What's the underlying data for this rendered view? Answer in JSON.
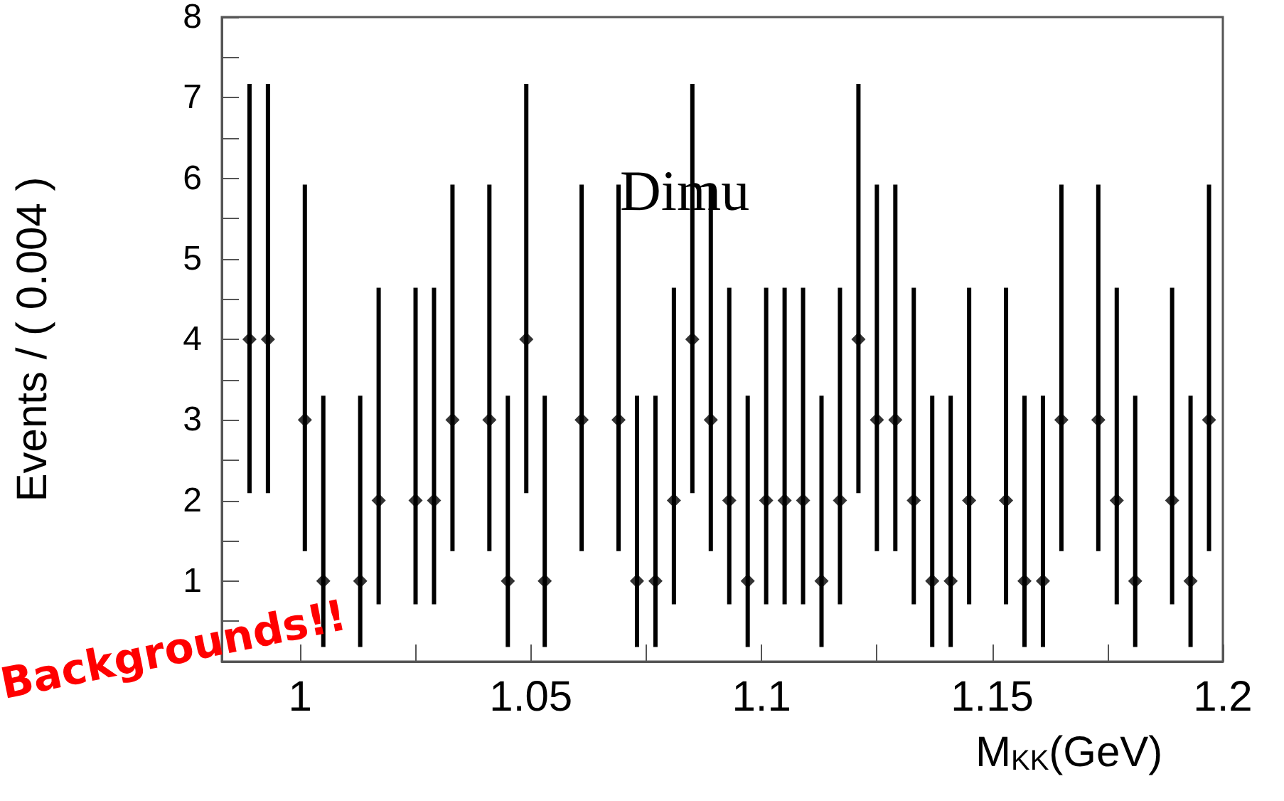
{
  "chart_data": {
    "type": "scatter",
    "xlabel": "M$_{KK}$(GeV)",
    "ylabel": "Events / ( 0.004 )",
    "annotations": [
      "Dimu",
      "Backgrounds!!"
    ],
    "x": [
      0.989,
      0.993,
      1.001,
      1.005,
      1.013,
      1.017,
      1.025,
      1.029,
      1.033,
      1.041,
      1.045,
      1.049,
      1.053,
      1.061,
      1.069,
      1.073,
      1.077,
      1.081,
      1.085,
      1.089,
      1.093,
      1.097,
      1.101,
      1.105,
      1.109,
      1.113,
      1.117,
      1.121,
      1.125,
      1.129,
      1.133,
      1.137,
      1.141,
      1.145,
      1.153,
      1.157,
      1.161,
      1.165,
      1.173,
      1.177,
      1.181,
      1.189,
      1.193,
      1.197
    ],
    "series": [
      {
        "color": "#000000",
        "values": [
          4,
          4,
          3,
          1,
          1,
          2,
          2,
          2,
          3,
          3,
          1,
          4,
          1,
          3,
          3,
          1,
          1,
          2,
          4,
          3,
          2,
          1,
          2,
          2,
          2,
          1,
          2,
          4,
          3,
          3,
          2,
          1,
          1,
          2,
          2,
          1,
          1,
          3,
          3,
          2,
          1,
          2,
          1,
          3
        ],
        "errors": [
          [
            2.09,
            7.17
          ],
          [
            2.09,
            7.17
          ],
          [
            1.37,
            5.92
          ],
          [
            0.18,
            3.3
          ],
          [
            0.18,
            3.3
          ],
          [
            0.71,
            4.64
          ],
          [
            0.71,
            4.64
          ],
          [
            0.71,
            4.64
          ],
          [
            1.37,
            5.92
          ],
          [
            1.37,
            5.92
          ],
          [
            0.18,
            3.3
          ],
          [
            2.09,
            7.17
          ],
          [
            0.18,
            3.3
          ],
          [
            1.37,
            5.92
          ],
          [
            1.37,
            5.92
          ],
          [
            0.18,
            3.3
          ],
          [
            0.18,
            3.3
          ],
          [
            0.71,
            4.64
          ],
          [
            2.09,
            7.17
          ],
          [
            1.37,
            5.92
          ],
          [
            0.71,
            4.64
          ],
          [
            0.18,
            3.3
          ],
          [
            0.71,
            4.64
          ],
          [
            0.71,
            4.64
          ],
          [
            0.71,
            4.64
          ],
          [
            0.18,
            3.3
          ],
          [
            0.71,
            4.64
          ],
          [
            2.09,
            7.17
          ],
          [
            1.37,
            5.92
          ],
          [
            1.37,
            5.92
          ],
          [
            0.71,
            4.64
          ],
          [
            0.18,
            3.3
          ],
          [
            0.18,
            3.3
          ],
          [
            0.71,
            4.64
          ],
          [
            0.71,
            4.64
          ],
          [
            0.18,
            3.3
          ],
          [
            0.18,
            3.3
          ],
          [
            1.37,
            5.92
          ],
          [
            1.37,
            5.92
          ],
          [
            0.71,
            4.64
          ],
          [
            0.18,
            3.3
          ],
          [
            0.71,
            4.64
          ],
          [
            0.18,
            3.3
          ],
          [
            1.37,
            5.92
          ]
        ]
      }
    ],
    "xlim": [
      0.983,
      1.2
    ],
    "xticks": [
      1,
      {
        "value": 1.025,
        "label": null
      },
      1.05,
      {
        "value": 1.075,
        "label": null
      },
      1.1,
      {
        "value": 1.125,
        "label": null
      },
      1.15,
      {
        "value": 1.175,
        "label": null
      },
      1.2
    ],
    "ylim": [
      0,
      8
    ],
    "yticks": [
      {
        "value": 0,
        "label": null
      },
      {
        "value": 0.5,
        "label": null
      },
      1,
      {
        "value": 1.5,
        "label": null
      },
      2,
      {
        "value": 2.5,
        "label": null
      },
      3,
      {
        "value": 3.5,
        "label": null
      },
      4,
      {
        "value": 4.5,
        "label": null
      },
      5,
      {
        "value": 5.5,
        "label": null
      },
      6,
      {
        "value": 6.5,
        "label": null
      },
      7,
      {
        "value": 7.5,
        "label": null
      },
      8
    ],
    "marker": "diamond",
    "grid": false
  }
}
